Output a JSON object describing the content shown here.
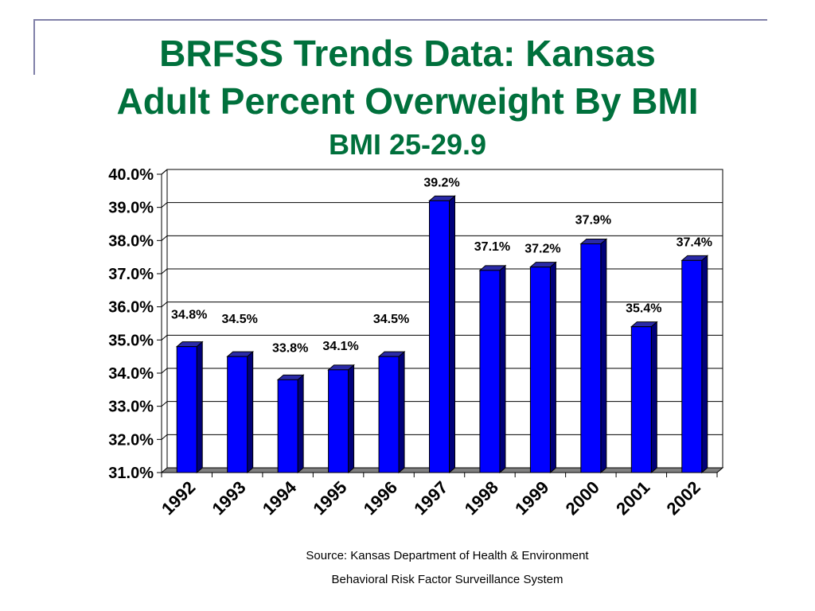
{
  "slide": {
    "title_line1": "BRFSS Trends Data: Kansas",
    "title_line2": "Adult Percent Overweight By BMI",
    "subtitle": "BMI 25-29.9",
    "source_line1": "Source: Kansas Department of Health & Environment",
    "source_line2": "Behavioral Risk Factor Surveillance System"
  },
  "chart_data": {
    "type": "bar",
    "title": "",
    "xlabel": "",
    "ylabel": "",
    "categories": [
      "1992",
      "1993",
      "1994",
      "1995",
      "1996",
      "1997",
      "1998",
      "1999",
      "2000",
      "2001",
      "2002"
    ],
    "values": [
      34.8,
      34.5,
      33.8,
      34.1,
      34.5,
      39.2,
      37.1,
      37.2,
      37.9,
      35.4,
      37.4
    ],
    "data_labels": [
      "34.8%",
      "34.5%",
      "33.8%",
      "34.1%",
      "34.5%",
      "39.2%",
      "37.1%",
      "37.2%",
      "37.9%",
      "35.4%",
      "37.4%"
    ],
    "ylim": [
      31,
      40
    ],
    "y_ticks": [
      31,
      32,
      33,
      34,
      35,
      36,
      37,
      38,
      39,
      40
    ],
    "y_tick_labels": [
      "31.0%",
      "32.0%",
      "33.0%",
      "34.0%",
      "35.0%",
      "36.0%",
      "37.0%",
      "38.0%",
      "39.0%",
      "40.0%"
    ],
    "grid": true,
    "legend": "none",
    "style": "3d",
    "colors": {
      "bar_front": "#0000ff",
      "bar_side": "#00007a",
      "bar_top": "#2a2aa8",
      "floor": "#808080",
      "title": "#00703c"
    }
  }
}
